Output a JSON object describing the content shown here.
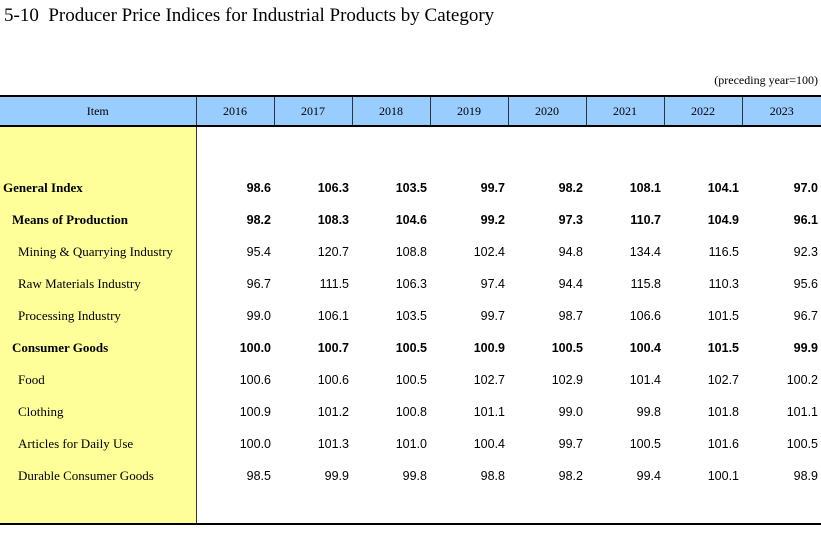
{
  "title": "5-10  Producer Price Indices for Industrial Products by Category",
  "unit_note": "(preceding year=100)",
  "header": {
    "item": "Item",
    "years": [
      "2016",
      "2017",
      "2018",
      "2019",
      "2020",
      "2021",
      "2022",
      "2023"
    ]
  },
  "rows": [
    {
      "label": "General Index",
      "level": 0,
      "values": [
        "98.6",
        "106.3",
        "103.5",
        "99.7",
        "98.2",
        "108.1",
        "104.1",
        "97.0"
      ]
    },
    {
      "label": "Means of Production",
      "level": 1,
      "values": [
        "98.2",
        "108.3",
        "104.6",
        "99.2",
        "97.3",
        "110.7",
        "104.9",
        "96.1"
      ]
    },
    {
      "label": "Mining & Quarrying Industry",
      "level": 2,
      "values": [
        "95.4",
        "120.7",
        "108.8",
        "102.4",
        "94.8",
        "134.4",
        "116.5",
        "92.3"
      ]
    },
    {
      "label": "Raw Materials Industry",
      "level": 2,
      "values": [
        "96.7",
        "111.5",
        "106.3",
        "97.4",
        "94.4",
        "115.8",
        "110.3",
        "95.6"
      ]
    },
    {
      "label": "Processing Industry",
      "level": 2,
      "values": [
        "99.0",
        "106.1",
        "103.5",
        "99.7",
        "98.7",
        "106.6",
        "101.5",
        "96.7"
      ]
    },
    {
      "label": "Consumer Goods",
      "level": 1,
      "values": [
        "100.0",
        "100.7",
        "100.5",
        "100.9",
        "100.5",
        "100.4",
        "101.5",
        "99.9"
      ]
    },
    {
      "label": "Food",
      "level": 2,
      "values": [
        "100.6",
        "100.6",
        "100.5",
        "102.7",
        "102.9",
        "101.4",
        "102.7",
        "100.2"
      ]
    },
    {
      "label": "Clothing",
      "level": 2,
      "values": [
        "100.9",
        "101.2",
        "100.8",
        "101.1",
        "99.0",
        "99.8",
        "101.8",
        "101.1"
      ]
    },
    {
      "label": "Articles for Daily Use",
      "level": 2,
      "values": [
        "100.0",
        "101.3",
        "101.0",
        "100.4",
        "99.7",
        "100.5",
        "101.6",
        "100.5"
      ]
    },
    {
      "label": "Durable Consumer Goods",
      "level": 2,
      "values": [
        "98.5",
        "99.9",
        "99.8",
        "98.8",
        "98.2",
        "99.4",
        "100.1",
        "98.9"
      ]
    }
  ]
}
